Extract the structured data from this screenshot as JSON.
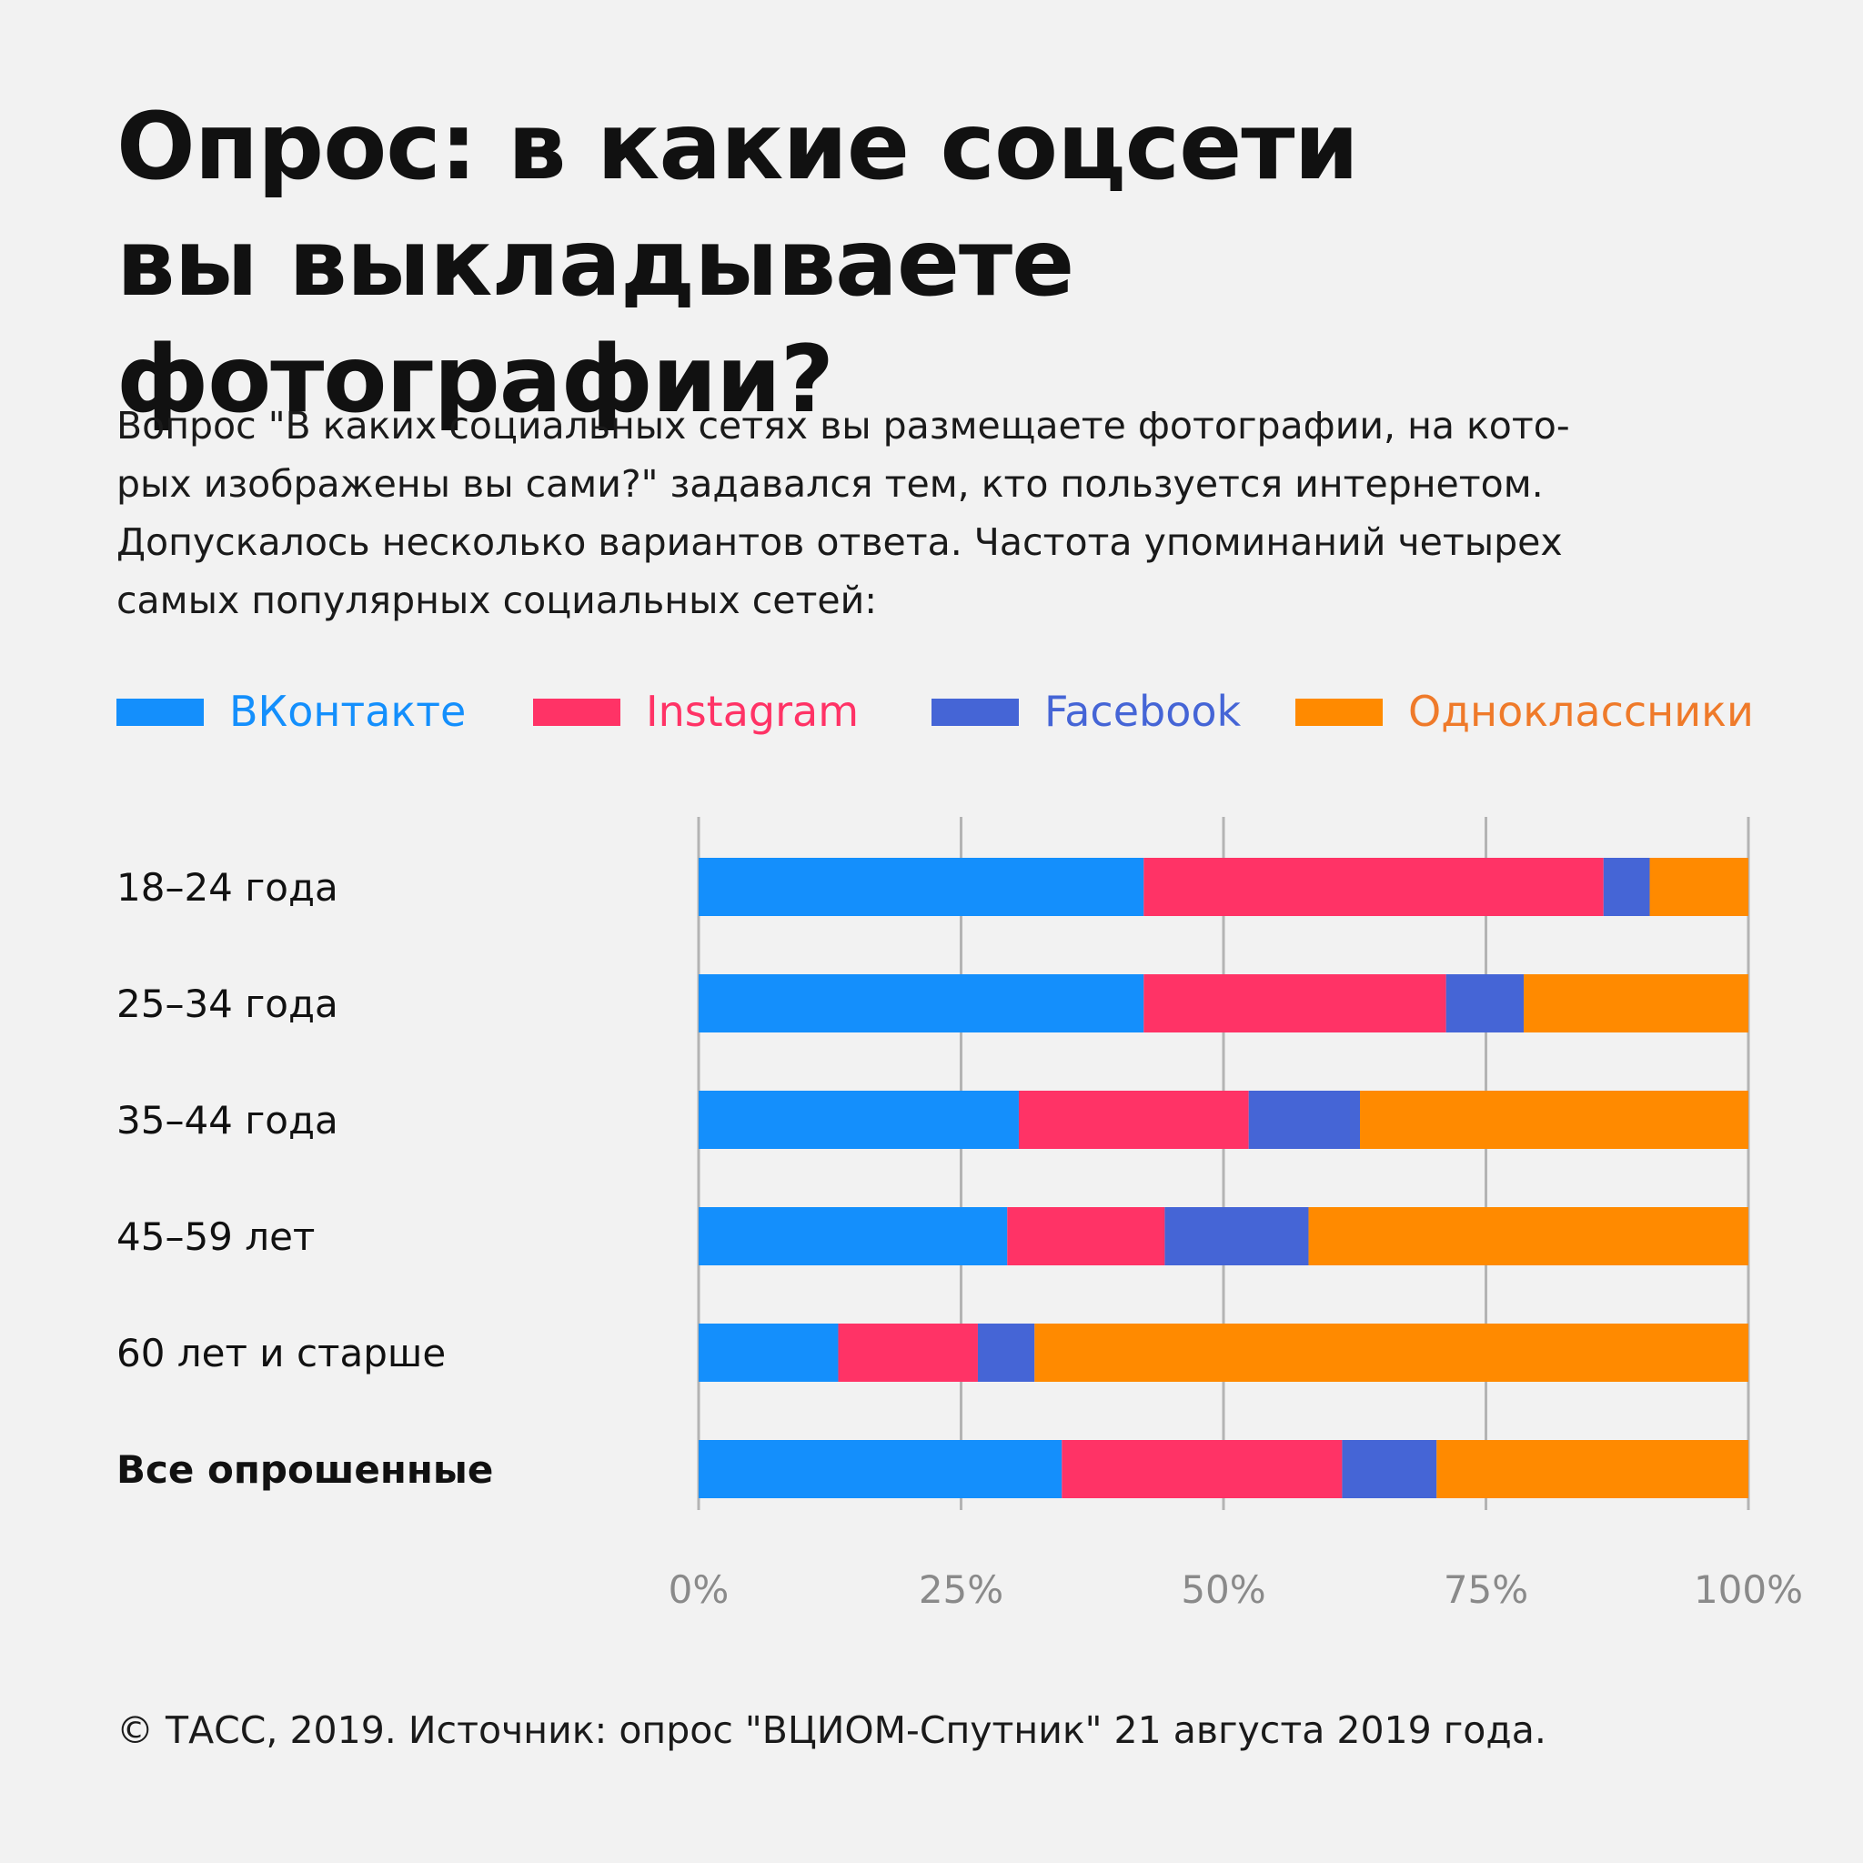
{
  "header": {
    "title_lines": [
      "Опрос: в какие соцсети",
      "вы выкладываете фотографии?"
    ],
    "description_lines": [
      "Вопрос \"В каких социальных сетях вы размещаете фотографии, на кото-",
      "рых изображены вы сами?\" задавался тем, кто пользуется интернетом.",
      "Допускалось несколько вариантов ответа. Частота упоминаний четырех",
      "самых популярных социальных сетей:"
    ]
  },
  "colors": {
    "vk": "#148ffc",
    "instagram": "#ff3366",
    "facebook": "#4565d6",
    "odnoklassniki": "#ff8a00",
    "vk_text": "#148ffc",
    "instagram_text": "#ff3366",
    "facebook_text": "#4565d6",
    "odnoklassniki_text": "#ef7a2a"
  },
  "chart_data": {
    "type": "bar",
    "orientation": "horizontal",
    "stacked": true,
    "categories": [
      "18–24 года",
      "25–34 года",
      "35–44 года",
      "45–59 лет",
      "60 лет и старше",
      "Все опрошенные"
    ],
    "bold_categories": [
      "Все опрошенные"
    ],
    "series": [
      {
        "name": "ВКонтакте",
        "key": "vk",
        "values": [
          42.4,
          42.4,
          30.5,
          29.4,
          13.3,
          34.6
        ]
      },
      {
        "name": "Instagram",
        "key": "instagram",
        "values": [
          43.8,
          28.8,
          21.9,
          15.0,
          13.3,
          26.7
        ]
      },
      {
        "name": "Facebook",
        "key": "facebook",
        "values": [
          4.4,
          7.4,
          10.6,
          13.7,
          5.4,
          9.0
        ]
      },
      {
        "name": "Одноклассники",
        "key": "odnoklassniki",
        "values": [
          9.4,
          21.4,
          37.0,
          41.9,
          68.0,
          29.7
        ]
      }
    ],
    "x_ticks": [
      0,
      25,
      50,
      75,
      100
    ],
    "x_tick_labels": [
      "0%",
      "25%",
      "50%",
      "75%",
      "100%"
    ],
    "xlim": [
      0,
      100
    ],
    "grid": true,
    "legend_position": "top",
    "title": "Опрос: в какие соцсети вы выкладываете фотографии?"
  },
  "footer": {
    "source": "© ТАСС, 2019. Источник: опрос \"ВЦИОМ-Спутник\" 21 августа 2019 года."
  }
}
